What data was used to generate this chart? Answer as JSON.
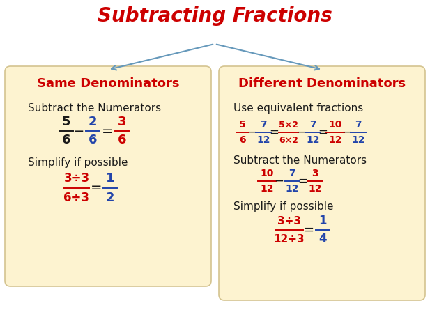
{
  "title": "Subtracting Fractions",
  "title_color": "#cc0000",
  "title_fontsize": 20,
  "bg_color": "#ffffff",
  "box_color": "#fdf3d0",
  "box_edge_color": "#d4c490",
  "arrow_color": "#6699bb",
  "red": "#cc0000",
  "blue": "#2244aa",
  "black": "#1a1a1a",
  "left_header": "Same Denominators",
  "left_line1": "Subtract the Numerators",
  "left_line3": "Simplify if possible",
  "right_header": "Different Denominators",
  "right_line1": "Use equivalent fractions",
  "right_line3": "Subtract the Numerators",
  "right_line5": "Simplify if possible"
}
